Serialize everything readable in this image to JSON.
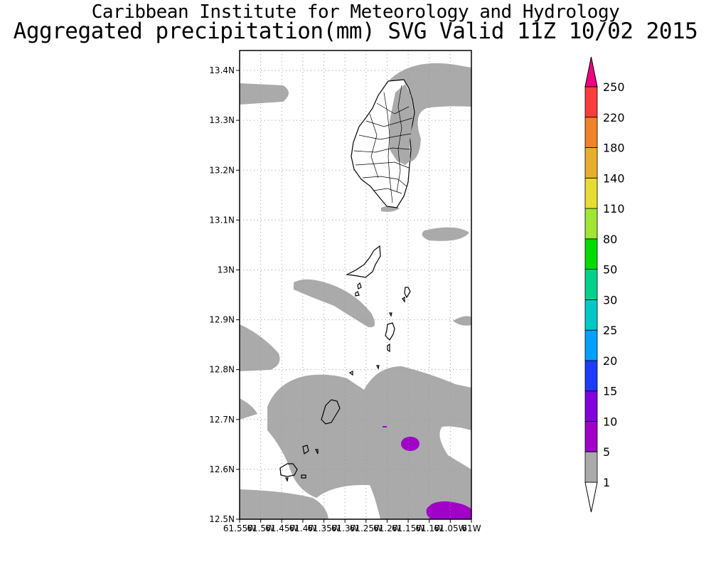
{
  "header": {
    "title": "Caribbean Institute for Meteorology and Hydrology",
    "subtitle": "Aggregated precipitation(mm) SVG Valid 11Z 10/02 2015"
  },
  "map": {
    "lat_range": [
      12.5,
      13.44
    ],
    "lon_range": [
      -61.55,
      -61.0
    ],
    "lat_ticks": [
      {
        "value": 13.4,
        "label": "13.4N"
      },
      {
        "value": 13.3,
        "label": "13.3N"
      },
      {
        "value": 13.2,
        "label": "13.2N"
      },
      {
        "value": 13.1,
        "label": "13.1N"
      },
      {
        "value": 13.0,
        "label": "13N"
      },
      {
        "value": 12.9,
        "label": "12.9N"
      },
      {
        "value": 12.8,
        "label": "12.8N"
      },
      {
        "value": 12.7,
        "label": "12.7N"
      },
      {
        "value": 12.6,
        "label": "12.6N"
      },
      {
        "value": 12.5,
        "label": "12.5N"
      }
    ],
    "lon_ticks": [
      {
        "value": -61.55,
        "label": "61.55W"
      },
      {
        "value": -61.5,
        "label": "61.5W"
      },
      {
        "value": -61.45,
        "label": "61.45W"
      },
      {
        "value": -61.4,
        "label": "61.4W"
      },
      {
        "value": -61.35,
        "label": "61.35W"
      },
      {
        "value": -61.3,
        "label": "61.3W"
      },
      {
        "value": -61.25,
        "label": "61.25W"
      },
      {
        "value": -61.2,
        "label": "61.2W"
      },
      {
        "value": -61.15,
        "label": "61.15W"
      },
      {
        "value": -61.1,
        "label": "61.1W"
      },
      {
        "value": -61.05,
        "label": "61.05W"
      },
      {
        "value": -61.0,
        "label": "61W"
      }
    ],
    "grid": true,
    "colors": {
      "precip_1_5": "#aaaaaa",
      "precip_5_10": "#a000c8",
      "coast": "#000000"
    }
  },
  "colorbar": {
    "levels": [
      "1",
      "5",
      "10",
      "15",
      "20",
      "25",
      "30",
      "50",
      "80",
      "110",
      "140",
      "180",
      "220",
      "250"
    ],
    "colors": [
      "#aaaaaa",
      "#a000c8",
      "#8200dc",
      "#1e3cff",
      "#00a0ff",
      "#00c8c8",
      "#00d28c",
      "#00dc00",
      "#a0e632",
      "#e6dc32",
      "#e6af2d",
      "#f08228",
      "#fa3c3c",
      "#f00082"
    ]
  }
}
